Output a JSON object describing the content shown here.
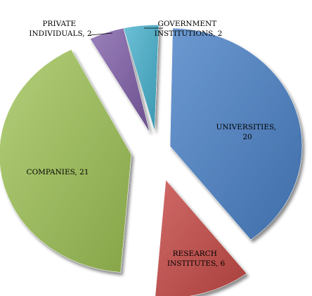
{
  "chart_data": {
    "type": "pie",
    "style": "exploded-3d",
    "title": "",
    "slices": [
      {
        "name": "UNIVERSITIES",
        "value": 20,
        "label_line1": "UNIVERSITIES,",
        "label_line2": "20",
        "color": "#4F81BD"
      },
      {
        "name": "RESEARCH INSTITUTES",
        "value": 6,
        "label_line1": "RESEARCH",
        "label_line2": "INSTITUTES, 6",
        "color": "#C0504D"
      },
      {
        "name": "COMPANIES",
        "value": 21,
        "label_line1": "COMPANIES, 21",
        "label_line2": "",
        "color": "#9BBB59"
      },
      {
        "name": "PRIVATE INDIVIDUALS",
        "value": 2,
        "label_line1": "PRIVATE",
        "label_line2": "INDIVIDUALS, 2",
        "color": "#8064A2"
      },
      {
        "name": "GOVERNMENT INSTITUTIONS",
        "value": 2,
        "label_line1": "GOVERNMENT",
        "label_line2": "INSTITUTIONS, 2",
        "color": "#4BACC6"
      }
    ],
    "legend": "none"
  }
}
